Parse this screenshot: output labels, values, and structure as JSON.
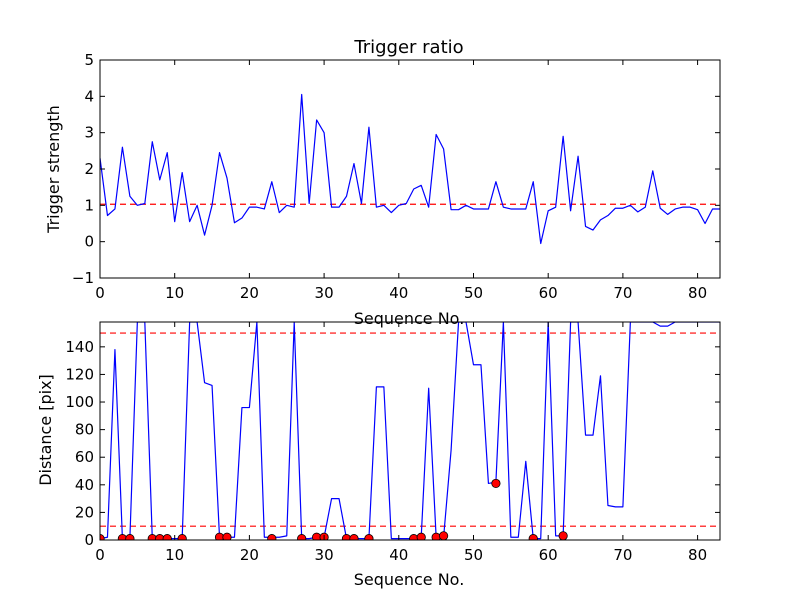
{
  "colors": {
    "line": "#0000ff",
    "threshold": "#ff0000",
    "marker_fill": "#ff0000",
    "marker_edge": "#000000",
    "axes": "#000000",
    "background": "#ffffff"
  },
  "chart_data": [
    {
      "type": "line",
      "title": "Trigger ratio",
      "xlabel": "Sequence No.",
      "ylabel": "Trigger strength",
      "xlim": [
        0,
        83
      ],
      "ylim": [
        -1,
        5
      ],
      "xticks": [
        "0",
        "10",
        "20",
        "30",
        "40",
        "50",
        "60",
        "70",
        "80"
      ],
      "yticks": [
        "−1",
        "0",
        "1",
        "2",
        "3",
        "4",
        "5"
      ],
      "grid": false,
      "threshold": 1.03,
      "series": [
        {
          "x": [
            0,
            1,
            2,
            3,
            4,
            5,
            6,
            7,
            8,
            9,
            10,
            11,
            12,
            13,
            14,
            15,
            16,
            17,
            18,
            19,
            20,
            21,
            22,
            23,
            24,
            25,
            26,
            27,
            28,
            29,
            30,
            31,
            32,
            33,
            34,
            35,
            36,
            37,
            38,
            39,
            40,
            41,
            42,
            43,
            44,
            45,
            46,
            47,
            48,
            49,
            50,
            51,
            52,
            53,
            54,
            55,
            56,
            57,
            58,
            59,
            60,
            61,
            62,
            63,
            64,
            65,
            66,
            67,
            68,
            69,
            70,
            71,
            72,
            73,
            74,
            75,
            76,
            77,
            78,
            79,
            80,
            81,
            82,
            83
          ],
          "values": [
            2.3,
            0.72,
            0.9,
            2.6,
            1.25,
            1.0,
            1.05,
            2.75,
            1.7,
            2.45,
            0.55,
            1.9,
            0.55,
            1.0,
            0.18,
            1.0,
            2.45,
            1.75,
            0.52,
            0.65,
            0.95,
            0.95,
            0.9,
            1.65,
            0.8,
            1.0,
            0.95,
            4.05,
            1.05,
            3.35,
            3.0,
            0.95,
            0.95,
            1.25,
            2.15,
            1.05,
            3.15,
            0.95,
            1.0,
            0.8,
            1.0,
            1.05,
            1.45,
            1.55,
            0.95,
            2.95,
            2.55,
            0.88,
            0.88,
            1.0,
            0.9,
            0.9,
            0.9,
            1.65,
            0.95,
            0.9,
            0.9,
            0.9,
            1.65,
            -0.05,
            0.85,
            0.95,
            2.9,
            0.85,
            2.35,
            0.42,
            0.32,
            0.6,
            0.72,
            0.92,
            0.92,
            1.0,
            0.82,
            0.95,
            1.95,
            0.92,
            0.75,
            0.9,
            0.95,
            0.95,
            0.88,
            0.5,
            0.9,
            0.9
          ]
        }
      ]
    },
    {
      "type": "line",
      "title": "",
      "xlabel": "Sequence No.",
      "ylabel": "Distance [pix]",
      "xlim": [
        0,
        83
      ],
      "ylim": [
        0,
        158
      ],
      "xticks": [
        "0",
        "10",
        "20",
        "30",
        "40",
        "50",
        "60",
        "70",
        "80"
      ],
      "yticks": [
        "0",
        "20",
        "40",
        "60",
        "80",
        "100",
        "120",
        "140"
      ],
      "grid": false,
      "thresholds": [
        10,
        150
      ],
      "series": [
        {
          "x": [
            0,
            1,
            2,
            3,
            4,
            5,
            6,
            7,
            8,
            9,
            10,
            11,
            12,
            13,
            14,
            15,
            16,
            17,
            18,
            19,
            20,
            21,
            22,
            23,
            24,
            25,
            26,
            27,
            28,
            29,
            30,
            31,
            32,
            33,
            34,
            35,
            36,
            37,
            38,
            39,
            40,
            41,
            42,
            43,
            44,
            45,
            46,
            47,
            48,
            49,
            50,
            51,
            52,
            53,
            54,
            55,
            56,
            57,
            58,
            59,
            60,
            61,
            62,
            63,
            64,
            65,
            66,
            67,
            68,
            69,
            70,
            71,
            72,
            73,
            74,
            75,
            76,
            77,
            78,
            79,
            80,
            81,
            82,
            83
          ],
          "values": [
            1,
            2,
            138,
            1,
            1,
            158,
            158,
            1,
            1,
            1,
            1,
            1,
            158,
            158,
            114,
            112,
            2,
            2,
            2,
            96,
            96,
            158,
            2,
            2,
            2,
            3,
            158,
            1,
            1,
            2,
            2,
            30,
            30,
            1,
            1,
            1,
            1,
            111,
            111,
            1,
            1,
            1,
            1,
            2,
            110,
            2,
            2,
            65,
            158,
            158,
            127,
            127,
            41,
            42,
            158,
            2,
            2,
            57,
            1,
            1,
            158,
            3,
            3,
            158,
            158,
            76,
            76,
            119,
            25,
            24,
            24,
            158,
            158,
            158,
            158,
            155,
            155,
            158,
            158,
            158,
            158,
            158,
            158,
            158
          ]
        },
        {
          "name": "",
          "marker": "circle",
          "x": [
            0,
            3,
            4,
            7,
            8,
            9,
            11,
            16,
            17,
            23,
            27,
            29,
            30,
            33,
            34,
            36,
            42,
            43,
            45,
            46,
            53,
            58,
            62
          ],
          "values": [
            1,
            1,
            1,
            1,
            1,
            1,
            1,
            2,
            2,
            1,
            1,
            2,
            2,
            1,
            1,
            1,
            1,
            2,
            2,
            3,
            41,
            1,
            3
          ]
        }
      ]
    }
  ]
}
